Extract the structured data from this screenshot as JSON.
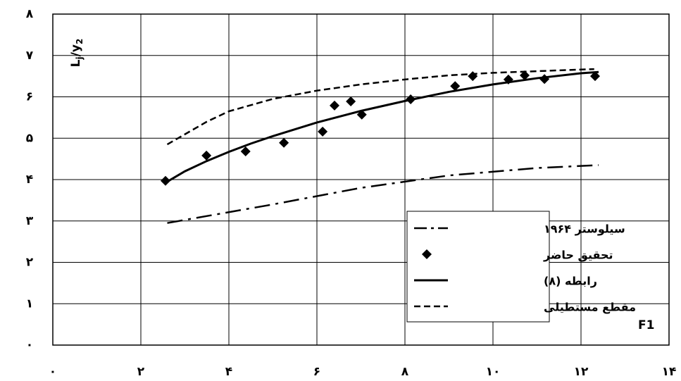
{
  "chart_data": {
    "type": "line",
    "x_label": "F1",
    "y_label_parts": [
      "L",
      "j",
      "/y",
      "2"
    ],
    "xlim": [
      0,
      14
    ],
    "ylim": [
      0,
      8
    ],
    "xticks": [
      {
        "value": 0,
        "label": "۰"
      },
      {
        "value": 2,
        "label": "۲"
      },
      {
        "value": 4,
        "label": "۴"
      },
      {
        "value": 6,
        "label": "۶"
      },
      {
        "value": 8,
        "label": "۸"
      },
      {
        "value": 10,
        "label": "۱۰"
      },
      {
        "value": 12,
        "label": "۱۲"
      },
      {
        "value": 14,
        "label": "۱۴"
      }
    ],
    "yticks": [
      {
        "value": 0,
        "label": "۰"
      },
      {
        "value": 1,
        "label": "۱"
      },
      {
        "value": 2,
        "label": "۲"
      },
      {
        "value": 3,
        "label": "۳"
      },
      {
        "value": 4,
        "label": "۴"
      },
      {
        "value": 5,
        "label": "۵"
      },
      {
        "value": 6,
        "label": "۶"
      },
      {
        "value": 7,
        "label": "۷"
      },
      {
        "value": 8,
        "label": "۸"
      }
    ],
    "grid": true,
    "legend": "lower right",
    "series": [
      {
        "name": "سیلوستر ۱۹۶۴",
        "color": "#000000",
        "style": "dashdot",
        "x": [
          2.6,
          5,
          7,
          9,
          11,
          12.4
        ],
        "values": [
          2.95,
          3.4,
          3.8,
          4.1,
          4.28,
          4.35
        ]
      },
      {
        "name": "تحقیق حاضر",
        "color": "#000000",
        "style": "markers",
        "x": [
          2.56,
          3.49,
          4.38,
          5.25,
          6.13,
          6.4,
          6.77,
          7.02,
          8.13,
          9.14,
          9.54,
          10.35,
          10.72,
          11.17,
          12.32
        ],
        "values": [
          3.97,
          4.58,
          4.68,
          4.89,
          5.16,
          5.79,
          5.89,
          5.57,
          5.94,
          6.26,
          6.5,
          6.42,
          6.52,
          6.43,
          6.5
        ]
      },
      {
        "name": "رابطه (۸)",
        "color": "#000000",
        "style": "solid",
        "x": [
          2.6,
          3,
          3.5,
          4,
          4.5,
          5,
          6,
          7,
          8,
          9,
          10,
          11,
          12,
          12.4
        ],
        "values": [
          3.95,
          4.2,
          4.45,
          4.67,
          4.87,
          5.05,
          5.38,
          5.66,
          5.9,
          6.12,
          6.3,
          6.45,
          6.57,
          6.6
        ]
      },
      {
        "name": "مقطع مستطیلی",
        "color": "#000000",
        "style": "dashed",
        "x": [
          2.6,
          3.5,
          4,
          5,
          6,
          7,
          8,
          9,
          10,
          11,
          12,
          12.3
        ],
        "values": [
          4.85,
          5.4,
          5.65,
          5.95,
          6.15,
          6.3,
          6.42,
          6.52,
          6.58,
          6.62,
          6.66,
          6.67
        ]
      }
    ]
  }
}
